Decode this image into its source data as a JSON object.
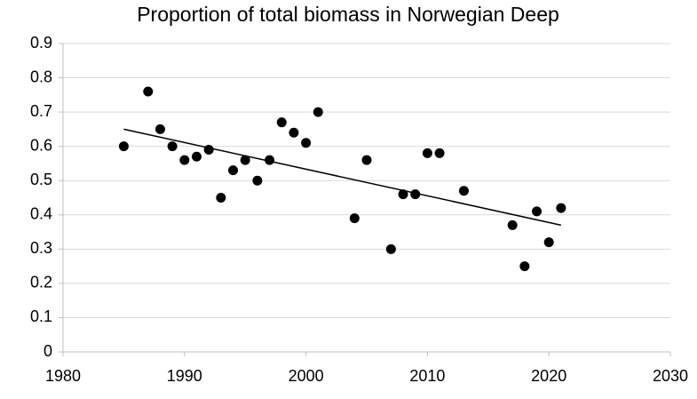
{
  "chart_data": {
    "type": "scatter",
    "title": "Proportion of total biomass in Norwegian Deep",
    "x": [
      1985,
      1987,
      1988,
      1989,
      1990,
      1991,
      1992,
      1993,
      1994,
      1995,
      1996,
      1997,
      1998,
      1999,
      2000,
      2001,
      2004,
      2005,
      2007,
      2008,
      2009,
      2010,
      2011,
      2013,
      2017,
      2018,
      2019,
      2020,
      2021
    ],
    "values": [
      0.6,
      0.76,
      0.65,
      0.6,
      0.56,
      0.57,
      0.59,
      0.45,
      0.53,
      0.56,
      0.5,
      0.56,
      0.67,
      0.64,
      0.61,
      0.7,
      0.39,
      0.56,
      0.3,
      0.46,
      0.46,
      0.58,
      0.58,
      0.47,
      0.37,
      0.25,
      0.41,
      0.32,
      0.42
    ],
    "color": "#000000",
    "trendline": {
      "x": [
        1985,
        2021
      ],
      "values": [
        0.65,
        0.37
      ]
    },
    "xlim": [
      1980,
      2030
    ],
    "xticks": [
      1980,
      1990,
      2000,
      2010,
      2020,
      2030
    ],
    "ylim": [
      0,
      0.9
    ],
    "yticks": [
      0,
      0.1,
      0.2,
      0.3,
      0.4,
      0.5,
      0.6,
      0.7,
      0.8,
      0.9
    ],
    "grid": true
  }
}
